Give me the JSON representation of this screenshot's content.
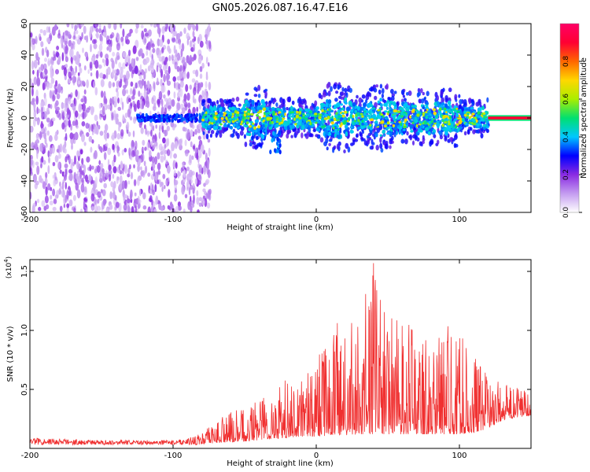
{
  "chart_data": [
    {
      "type": "heatmap",
      "title": "GN05.2026.087.16.47.E16",
      "xlabel": "Height of straight line (km)",
      "ylabel": "Frequency (Hz)",
      "xlim": [
        -200,
        150
      ],
      "ylim": [
        -60,
        60
      ],
      "xticks": [
        -200,
        -100,
        0,
        100
      ],
      "xtick_labels": [
        "-200",
        "-100",
        "0",
        "100"
      ],
      "yticks": [
        60,
        40,
        20,
        0,
        -20,
        -40,
        -60
      ],
      "ytick_labels": [
        "60",
        "40",
        "20",
        "0",
        "-20",
        "-40",
        "-60"
      ],
      "colorbar": {
        "label": "Normalized spectral amplitude",
        "range": [
          0,
          1
        ],
        "ticks": [
          0.0,
          0.2,
          0.4,
          0.6,
          0.8
        ],
        "tick_labels": [
          "0.0",
          "0.2",
          "0.4",
          "0.6",
          "0.8"
        ],
        "colors": [
          "#ffffff",
          "#c49cf0",
          "#8a2be2",
          "#0000ff",
          "#00c8ff",
          "#00e070",
          "#aaee00",
          "#ffd700",
          "#ff6600",
          "#ff0033",
          "#ff0066"
        ]
      },
      "regions": [
        {
          "x_range": [
            -200,
            -80
          ],
          "freq_range": [
            -60,
            60
          ],
          "amplitude": [
            0.0,
            0.15
          ],
          "description": "broadband noise"
        },
        {
          "x_range": [
            -125,
            -80
          ],
          "freq_center": 0,
          "freq_width": 4,
          "amplitude": [
            0.1,
            0.2
          ]
        },
        {
          "x_range": [
            -80,
            120
          ],
          "freq_center": 0,
          "freq_width": 10,
          "amplitude": [
            0.15,
            0.55
          ]
        },
        {
          "x_range": [
            120,
            150
          ],
          "freq_center": 0,
          "freq_width": 3,
          "amplitude": [
            0.6,
            1.0
          ]
        }
      ]
    },
    {
      "type": "line",
      "xlabel": "Height of straight line (km)",
      "ylabel": "SNR (10 * v/v)",
      "y_multiplier": "(x10^4)",
      "multiplier_base": "(x10",
      "multiplier_exp": "4",
      "multiplier_close": ")",
      "xlim": [
        -200,
        150
      ],
      "ylim": [
        0,
        1.6
      ],
      "xticks": [
        -200,
        -100,
        0,
        100
      ],
      "xtick_labels": [
        "-200",
        "-100",
        "0",
        "100"
      ],
      "yticks": [
        0.5,
        1.0,
        1.5
      ],
      "ytick_labels": [
        "0.5",
        "1.0",
        "1.5"
      ],
      "series": [
        {
          "name": "SNR",
          "color": "#f03030",
          "envelope": {
            "x": [
              -200,
              -150,
              -100,
              -85,
              -75,
              -65,
              -50,
              -40,
              -30,
              -20,
              -10,
              0,
              10,
              20,
              30,
              40,
              50,
              60,
              70,
              80,
              90,
              100,
              110,
              120,
              130,
              140,
              150
            ],
            "max": [
              0.09,
              0.07,
              0.07,
              0.1,
              0.18,
              0.3,
              0.34,
              0.48,
              0.5,
              0.6,
              0.62,
              0.72,
              1.08,
              1.05,
              1.1,
              1.57,
              1.12,
              1.1,
              1.0,
              0.95,
              1.05,
              1.0,
              0.8,
              0.62,
              0.55,
              0.52,
              0.55
            ],
            "min": [
              0.03,
              0.03,
              0.03,
              0.03,
              0.04,
              0.05,
              0.06,
              0.07,
              0.08,
              0.09,
              0.1,
              0.1,
              0.11,
              0.11,
              0.12,
              0.12,
              0.12,
              0.12,
              0.12,
              0.12,
              0.12,
              0.12,
              0.13,
              0.17,
              0.24,
              0.26,
              0.28
            ]
          },
          "peak": {
            "x": 40,
            "y": 1.57
          }
        }
      ]
    }
  ]
}
